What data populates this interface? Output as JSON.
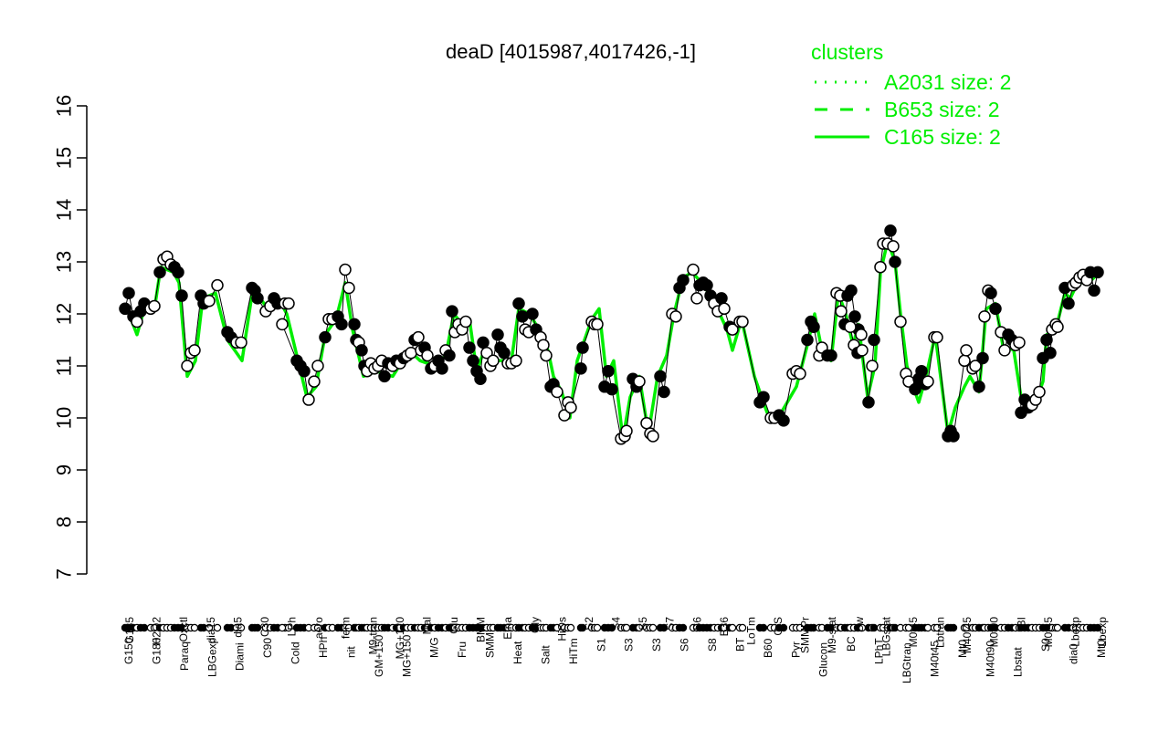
{
  "chart_data": {
    "type": "line",
    "title": "deaD [4015987,4017426,-1]",
    "xlabel": "",
    "ylabel": "",
    "ylim": [
      7,
      16
    ],
    "yticks": [
      7,
      8,
      9,
      10,
      11,
      12,
      13,
      14,
      15,
      16
    ],
    "grid": false,
    "legend": {
      "title": "clusters",
      "position": "top-right",
      "color": "#00ee00",
      "entries": [
        {
          "label": "A2031 size: 2",
          "style": "dotted"
        },
        {
          "label": "B653 size: 2",
          "style": "dashed"
        },
        {
          "label": "C165 size: 2",
          "style": "solid"
        }
      ]
    },
    "series_colors": {
      "line": "#00ee00",
      "points_line": "#000000"
    },
    "x_labels_top": [
      "G135",
      "H2O2",
      "Oxctl",
      "dia15",
      "dia5",
      "C30",
      "LPh",
      "aero",
      "ferm",
      "M9-tran",
      "MG+120",
      "Mal",
      "Glu",
      "BMM",
      "Etha",
      "Gly",
      "HiOs",
      "S2",
      "S4",
      "S5",
      "S7",
      "S6",
      "B36",
      "LoTm",
      "G/S",
      "SMMPr",
      "M9-stat",
      "Sw",
      "LBGstat",
      "M0t45",
      "Lbtran",
      "M40t45",
      "M0t90",
      "BI",
      "M0t45",
      "Lbexp",
      "Lbexp"
    ],
    "x_labels_bottom": [
      "G150",
      "G180",
      "Paraq",
      "LBGexp",
      "Diami",
      "C90",
      "Cold",
      "HPh",
      "nit",
      "GM+150",
      "MG+150",
      "M/G",
      "Fru",
      "SMM",
      "Heat",
      "Salt",
      "HiTm",
      "S1",
      "S3",
      "S3",
      "S6",
      "S8",
      "BT",
      "B60",
      "Pyr",
      "Glucon",
      "BC",
      "LPhT",
      "LBGtran",
      "M40t45",
      "Mt0",
      "M40t90",
      "Lbstat",
      "S0",
      "dia0",
      "Mt0"
    ],
    "points": [
      [
        137,
        12.1,
        1
      ],
      [
        141,
        12.4,
        1
      ],
      [
        146,
        11.95,
        1
      ],
      [
        150,
        11.85,
        0
      ],
      [
        154,
        12.05,
        1
      ],
      [
        158,
        12.2,
        1
      ],
      [
        165,
        12.1,
        0
      ],
      [
        169,
        12.15,
        0
      ],
      [
        175,
        12.8,
        1
      ],
      [
        179,
        13.05,
        0
      ],
      [
        183,
        13.1,
        0
      ],
      [
        187,
        12.95,
        0
      ],
      [
        191,
        12.9,
        1
      ],
      [
        195,
        12.8,
        1
      ],
      [
        199,
        12.35,
        1
      ],
      [
        205,
        11.0,
        0
      ],
      [
        209,
        11.25,
        0
      ],
      [
        213,
        11.3,
        0
      ],
      [
        220,
        12.35,
        1
      ],
      [
        223,
        12.2,
        1
      ],
      [
        229,
        12.25,
        0
      ],
      [
        238,
        12.55,
        0
      ],
      [
        249,
        11.65,
        1
      ],
      [
        253,
        11.55,
        1
      ],
      [
        259,
        11.45,
        0
      ],
      [
        264,
        11.45,
        0
      ],
      [
        276,
        12.5,
        1
      ],
      [
        279,
        12.45,
        1
      ],
      [
        282,
        12.3,
        1
      ],
      [
        291,
        12.05,
        0
      ],
      [
        296,
        12.15,
        0
      ],
      [
        300,
        12.3,
        1
      ],
      [
        304,
        12.2,
        1
      ],
      [
        312,
        12.2,
        0
      ],
      [
        316,
        12.2,
        0
      ],
      [
        309,
        11.8,
        0
      ],
      [
        325,
        11.1,
        1
      ],
      [
        329,
        11.0,
        1
      ],
      [
        333,
        10.9,
        1
      ],
      [
        338,
        10.35,
        0
      ],
      [
        344,
        10.7,
        0
      ],
      [
        348,
        11.0,
        0
      ],
      [
        356,
        11.55,
        1
      ],
      [
        360,
        11.9,
        0
      ],
      [
        364,
        11.9,
        0
      ],
      [
        370,
        11.95,
        1
      ],
      [
        374,
        11.8,
        1
      ],
      [
        378,
        12.85,
        0
      ],
      [
        382,
        12.5,
        0
      ],
      [
        388,
        11.8,
        1
      ],
      [
        390,
        11.5,
        1
      ],
      [
        393,
        11.45,
        0
      ],
      [
        396,
        11.3,
        1
      ],
      [
        399,
        11.0,
        1
      ],
      [
        402,
        10.9,
        0
      ],
      [
        406,
        11.05,
        0
      ],
      [
        410,
        10.95,
        0
      ],
      [
        414,
        11.0,
        0
      ],
      [
        418,
        11.1,
        0
      ],
      [
        421,
        10.8,
        1
      ],
      [
        425,
        11.05,
        1
      ],
      [
        430,
        11.0,
        0
      ],
      [
        434,
        11.1,
        1
      ],
      [
        438,
        11.05,
        0
      ],
      [
        442,
        11.15,
        1
      ],
      [
        446,
        11.2,
        0
      ],
      [
        450,
        11.25,
        0
      ],
      [
        454,
        11.5,
        1
      ],
      [
        458,
        11.55,
        0
      ],
      [
        461,
        11.3,
        0
      ],
      [
        465,
        11.35,
        1
      ],
      [
        468,
        11.2,
        0
      ],
      [
        472,
        10.95,
        1
      ],
      [
        476,
        11.0,
        0
      ],
      [
        480,
        11.1,
        1
      ],
      [
        484,
        10.95,
        1
      ],
      [
        488,
        11.3,
        0
      ],
      [
        492,
        11.2,
        1
      ],
      [
        495,
        12.05,
        1
      ],
      [
        498,
        11.65,
        0
      ],
      [
        502,
        11.8,
        0
      ],
      [
        506,
        11.7,
        0
      ],
      [
        510,
        11.85,
        0
      ],
      [
        514,
        11.35,
        1
      ],
      [
        518,
        11.1,
        1
      ],
      [
        522,
        10.9,
        1
      ],
      [
        526,
        10.75,
        1
      ],
      [
        529,
        11.45,
        1
      ],
      [
        533,
        11.25,
        0
      ],
      [
        537,
        11.0,
        0
      ],
      [
        540,
        11.1,
        0
      ],
      [
        545,
        11.6,
        1
      ],
      [
        548,
        11.35,
        1
      ],
      [
        552,
        11.25,
        1
      ],
      [
        556,
        11.05,
        0
      ],
      [
        560,
        11.05,
        0
      ],
      [
        565,
        11.1,
        0
      ],
      [
        568,
        12.2,
        1
      ],
      [
        572,
        11.95,
        1
      ],
      [
        575,
        11.7,
        0
      ],
      [
        579,
        11.65,
        0
      ],
      [
        583,
        12.0,
        1
      ],
      [
        587,
        11.7,
        1
      ],
      [
        592,
        11.55,
        0
      ],
      [
        595,
        11.4,
        0
      ],
      [
        598,
        11.2,
        0
      ],
      [
        603,
        10.6,
        1
      ],
      [
        606,
        10.65,
        1
      ],
      [
        610,
        10.5,
        0
      ],
      [
        618,
        10.05,
        0
      ],
      [
        622,
        10.3,
        0
      ],
      [
        625,
        10.2,
        0
      ],
      [
        636,
        10.95,
        1
      ],
      [
        638,
        11.35,
        1
      ],
      [
        648,
        11.85,
        0
      ],
      [
        651,
        11.8,
        0
      ],
      [
        654,
        11.8,
        0
      ],
      [
        662,
        10.6,
        1
      ],
      [
        666,
        10.9,
        1
      ],
      [
        670,
        10.55,
        1
      ],
      [
        680,
        9.6,
        0
      ],
      [
        684,
        9.65,
        0
      ],
      [
        686,
        9.75,
        0
      ],
      [
        693,
        10.75,
        1
      ],
      [
        697,
        10.6,
        1
      ],
      [
        700,
        10.7,
        0
      ],
      [
        708,
        9.9,
        0
      ],
      [
        712,
        9.7,
        0
      ],
      [
        715,
        9.65,
        0
      ],
      [
        723,
        10.8,
        1
      ],
      [
        727,
        10.5,
        1
      ],
      [
        736,
        12.0,
        0
      ],
      [
        740,
        11.95,
        0
      ],
      [
        744,
        12.5,
        1
      ],
      [
        748,
        12.65,
        1
      ],
      [
        759,
        12.85,
        0
      ],
      [
        763,
        12.3,
        0
      ],
      [
        766,
        12.55,
        1
      ],
      [
        770,
        12.6,
        1
      ],
      [
        774,
        12.55,
        1
      ],
      [
        778,
        12.35,
        1
      ],
      [
        782,
        12.2,
        0
      ],
      [
        786,
        12.05,
        0
      ],
      [
        790,
        12.3,
        1
      ],
      [
        793,
        12.1,
        0
      ],
      [
        799,
        11.75,
        1
      ],
      [
        802,
        11.7,
        0
      ],
      [
        810,
        11.85,
        0
      ],
      [
        813,
        11.85,
        0
      ],
      [
        832,
        10.3,
        1
      ],
      [
        836,
        10.4,
        1
      ],
      [
        844,
        10.0,
        0
      ],
      [
        848,
        10.0,
        0
      ],
      [
        853,
        10.05,
        1
      ],
      [
        858,
        9.95,
        1
      ],
      [
        868,
        10.85,
        0
      ],
      [
        872,
        10.9,
        0
      ],
      [
        876,
        10.85,
        0
      ],
      [
        884,
        11.5,
        1
      ],
      [
        888,
        11.85,
        1
      ],
      [
        891,
        11.75,
        1
      ],
      [
        897,
        11.2,
        0
      ],
      [
        900,
        11.35,
        0
      ],
      [
        906,
        11.2,
        1
      ],
      [
        910,
        11.2,
        1
      ],
      [
        916,
        12.4,
        0
      ],
      [
        920,
        12.35,
        0
      ],
      [
        921,
        12.05,
        0
      ],
      [
        925,
        11.8,
        1
      ],
      [
        928,
        12.35,
        1
      ],
      [
        932,
        12.45,
        1
      ],
      [
        936,
        11.95,
        1
      ],
      [
        940,
        11.7,
        1
      ],
      [
        943,
        11.6,
        0
      ],
      [
        931,
        11.75,
        0
      ],
      [
        935,
        11.4,
        0
      ],
      [
        939,
        11.25,
        1
      ],
      [
        944,
        11.3,
        0
      ],
      [
        951,
        10.3,
        1
      ],
      [
        955,
        11.0,
        0
      ],
      [
        957,
        11.5,
        1
      ],
      [
        964,
        12.9,
        0
      ],
      [
        967,
        13.35,
        0
      ],
      [
        972,
        13.35,
        0
      ],
      [
        975,
        13.6,
        1
      ],
      [
        978,
        13.3,
        0
      ],
      [
        980,
        13.0,
        1
      ],
      [
        986,
        11.85,
        0
      ],
      [
        992,
        10.85,
        0
      ],
      [
        995,
        10.7,
        0
      ],
      [
        1002,
        10.55,
        1
      ],
      [
        1006,
        10.75,
        1
      ],
      [
        1009,
        10.9,
        1
      ],
      [
        1013,
        10.65,
        1
      ],
      [
        1016,
        10.7,
        0
      ],
      [
        1023,
        11.55,
        0
      ],
      [
        1026,
        11.55,
        0
      ],
      [
        1038,
        9.65,
        1
      ],
      [
        1041,
        9.75,
        1
      ],
      [
        1044,
        9.65,
        1
      ],
      [
        1056,
        11.1,
        0
      ],
      [
        1058,
        11.3,
        0
      ],
      [
        1065,
        10.95,
        0
      ],
      [
        1068,
        11.0,
        0
      ],
      [
        1072,
        10.6,
        1
      ],
      [
        1076,
        11.15,
        1
      ],
      [
        1078,
        11.95,
        0
      ],
      [
        1082,
        12.45,
        0
      ],
      [
        1085,
        12.4,
        1
      ],
      [
        1090,
        12.1,
        1
      ],
      [
        1096,
        11.65,
        0
      ],
      [
        1100,
        11.3,
        0
      ],
      [
        1104,
        11.6,
        1
      ],
      [
        1108,
        11.5,
        1
      ],
      [
        1112,
        11.4,
        0
      ],
      [
        1116,
        11.45,
        0
      ],
      [
        1118,
        10.1,
        1
      ],
      [
        1122,
        10.35,
        1
      ],
      [
        1126,
        10.2,
        1
      ],
      [
        1130,
        10.25,
        0
      ],
      [
        1134,
        10.35,
        0
      ],
      [
        1138,
        10.5,
        0
      ],
      [
        1142,
        11.15,
        1
      ],
      [
        1146,
        11.5,
        1
      ],
      [
        1150,
        11.25,
        1
      ],
      [
        1152,
        11.7,
        0
      ],
      [
        1156,
        11.8,
        0
      ],
      [
        1158,
        11.75,
        0
      ],
      [
        1166,
        12.5,
        1
      ],
      [
        1170,
        12.2,
        1
      ],
      [
        1175,
        12.55,
        0
      ],
      [
        1178,
        12.6,
        0
      ],
      [
        1182,
        12.7,
        0
      ],
      [
        1186,
        12.75,
        0
      ],
      [
        1190,
        12.65,
        0
      ],
      [
        1194,
        12.8,
        1
      ],
      [
        1198,
        12.45,
        1
      ],
      [
        1202,
        12.8,
        1
      ]
    ],
    "green_line": [
      [
        137,
        12.2
      ],
      [
        150,
        11.6
      ],
      [
        158,
        12.1
      ],
      [
        170,
        12.2
      ],
      [
        176,
        12.9
      ],
      [
        190,
        12.8
      ],
      [
        196,
        12.6
      ],
      [
        205,
        10.8
      ],
      [
        214,
        11.1
      ],
      [
        222,
        12.3
      ],
      [
        236,
        12.4
      ],
      [
        249,
        11.5
      ],
      [
        265,
        11.1
      ],
      [
        277,
        12.5
      ],
      [
        293,
        12.1
      ],
      [
        305,
        12.3
      ],
      [
        314,
        12.0
      ],
      [
        325,
        11.2
      ],
      [
        336,
        10.4
      ],
      [
        346,
        10.6
      ],
      [
        356,
        11.6
      ],
      [
        368,
        11.9
      ],
      [
        378,
        12.6
      ],
      [
        386,
        11.7
      ],
      [
        398,
        10.8
      ],
      [
        412,
        10.9
      ],
      [
        430,
        10.8
      ],
      [
        448,
        11.3
      ],
      [
        460,
        11.1
      ],
      [
        476,
        11.0
      ],
      [
        488,
        11.2
      ],
      [
        497,
        12.0
      ],
      [
        506,
        11.8
      ],
      [
        514,
        11.9
      ],
      [
        522,
        10.9
      ],
      [
        530,
        11.3
      ],
      [
        545,
        11.1
      ],
      [
        560,
        11.1
      ],
      [
        568,
        12.1
      ],
      [
        580,
        12.0
      ],
      [
        590,
        11.7
      ],
      [
        600,
        11.3
      ],
      [
        606,
        10.8
      ],
      [
        615,
        10.5
      ],
      [
        624,
        10.0
      ],
      [
        632,
        11.1
      ],
      [
        648,
        11.9
      ],
      [
        656,
        12.1
      ],
      [
        664,
        10.8
      ],
      [
        672,
        11.1
      ],
      [
        682,
        9.6
      ],
      [
        690,
        10.4
      ],
      [
        700,
        10.8
      ],
      [
        710,
        9.7
      ],
      [
        720,
        10.8
      ],
      [
        730,
        11.2
      ],
      [
        738,
        12.0
      ],
      [
        748,
        12.7
      ],
      [
        758,
        12.8
      ],
      [
        768,
        12.6
      ],
      [
        780,
        12.3
      ],
      [
        796,
        11.7
      ],
      [
        802,
        11.3
      ],
      [
        812,
        11.9
      ],
      [
        826,
        10.8
      ],
      [
        840,
        10.1
      ],
      [
        852,
        10.0
      ],
      [
        862,
        10.3
      ],
      [
        872,
        10.6
      ],
      [
        884,
        11.4
      ],
      [
        892,
        12.0
      ],
      [
        900,
        11.3
      ],
      [
        910,
        11.1
      ],
      [
        918,
        12.4
      ],
      [
        926,
        12.0
      ],
      [
        934,
        11.4
      ],
      [
        940,
        11.8
      ],
      [
        950,
        10.4
      ],
      [
        958,
        11.0
      ],
      [
        964,
        12.8
      ],
      [
        972,
        13.4
      ],
      [
        980,
        13.0
      ],
      [
        986,
        12.0
      ],
      [
        993,
        11.0
      ],
      [
        1000,
        10.6
      ],
      [
        1006,
        10.3
      ],
      [
        1014,
        10.8
      ],
      [
        1024,
        11.6
      ],
      [
        1038,
        9.7
      ],
      [
        1046,
        10.2
      ],
      [
        1056,
        10.6
      ],
      [
        1062,
        10.8
      ],
      [
        1072,
        10.5
      ],
      [
        1080,
        12.1
      ],
      [
        1090,
        12.2
      ],
      [
        1098,
        11.4
      ],
      [
        1110,
        11.3
      ],
      [
        1118,
        10.4
      ],
      [
        1126,
        10.2
      ],
      [
        1136,
        10.4
      ],
      [
        1142,
        10.7
      ],
      [
        1146,
        11.6
      ],
      [
        1156,
        11.7
      ],
      [
        1166,
        12.4
      ],
      [
        1172,
        12.3
      ],
      [
        1180,
        12.6
      ],
      [
        1192,
        12.6
      ],
      [
        1204,
        12.8
      ]
    ]
  }
}
